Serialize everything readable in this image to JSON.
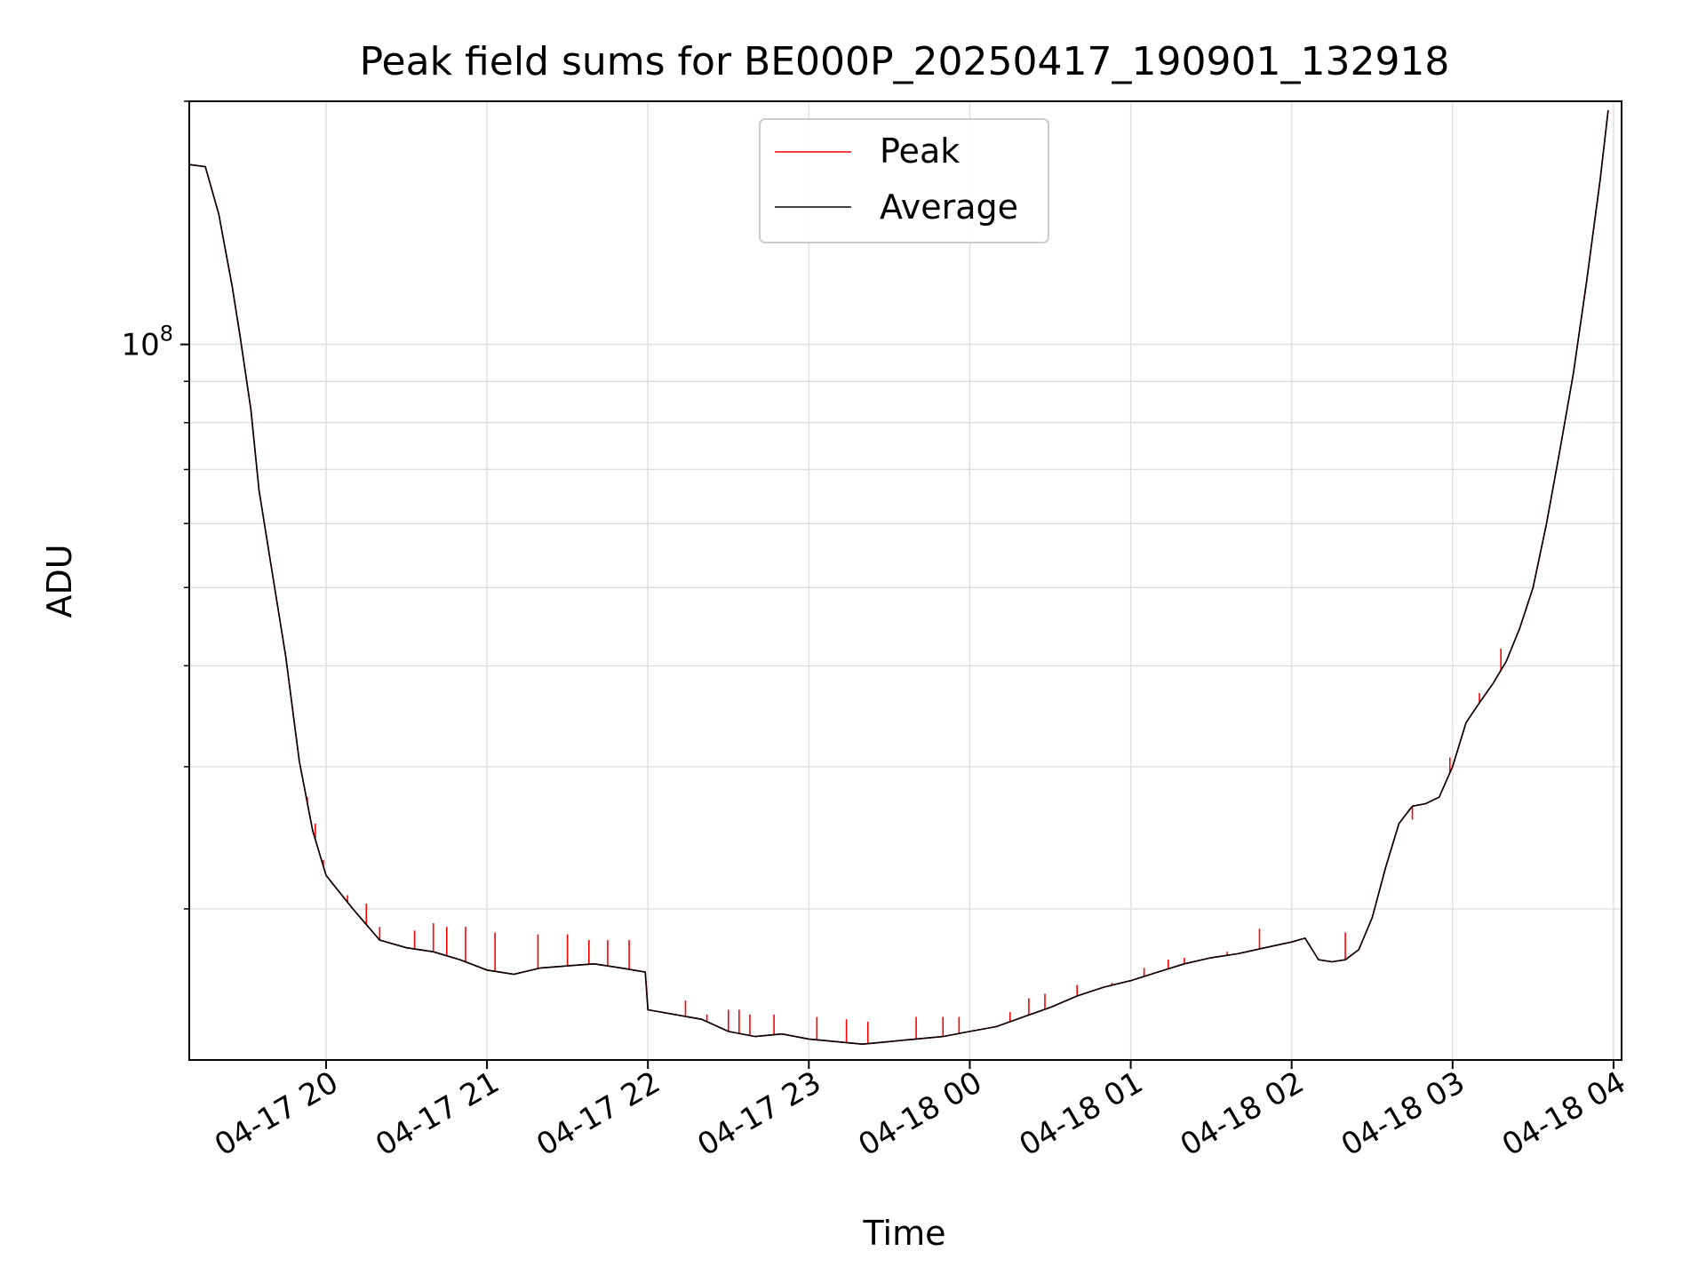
{
  "chart_data": {
    "type": "line",
    "title": "Peak field sums for BE000P_20250417_190901_132918",
    "xlabel": "Time",
    "ylabel": "ADU",
    "y_scale": "log",
    "ylim": [
      13000000,
      200000000
    ],
    "xlim": [
      "2025-04-17 19:09",
      "2025-04-18 04:03"
    ],
    "x_ticks": [
      "2025-04-17 20:00",
      "2025-04-17 21:00",
      "2025-04-17 22:00",
      "2025-04-17 23:00",
      "2025-04-18 00:00",
      "2025-04-18 01:00",
      "2025-04-18 02:00",
      "2025-04-18 03:00",
      "2025-04-18 04:00"
    ],
    "x_tick_labels": [
      "04-17 20",
      "04-17 21",
      "04-17 22",
      "04-17 23",
      "04-18 00",
      "04-18 01",
      "04-18 02",
      "04-18 03",
      "04-18 04"
    ],
    "y_tick_labels": [
      {
        "value": 100000000,
        "base": "10",
        "exp": "8"
      }
    ],
    "grid": true,
    "legend_position": "top-center",
    "series": [
      {
        "name": "Peak",
        "color": "#ff0000",
        "spikes": [
          [
            "2025-04-17 19:53",
            27500000
          ],
          [
            "2025-04-17 19:56",
            25500000
          ],
          [
            "2025-04-17 19:59",
            23000000
          ],
          [
            "2025-04-17 20:08",
            20800000
          ],
          [
            "2025-04-17 20:15",
            20300000
          ],
          [
            "2025-04-17 20:20",
            19000000
          ],
          [
            "2025-04-17 20:33",
            18800000
          ],
          [
            "2025-04-17 20:40",
            19200000
          ],
          [
            "2025-04-17 20:45",
            19000000
          ],
          [
            "2025-04-17 20:52",
            19000000
          ],
          [
            "2025-04-17 21:03",
            18700000
          ],
          [
            "2025-04-17 21:19",
            18600000
          ],
          [
            "2025-04-17 21:30",
            18600000
          ],
          [
            "2025-04-17 21:38",
            18300000
          ],
          [
            "2025-04-17 21:45",
            18300000
          ],
          [
            "2025-04-17 21:53",
            18300000
          ],
          [
            "2025-04-17 22:14",
            15400000
          ],
          [
            "2025-04-17 22:22",
            14800000
          ],
          [
            "2025-04-17 22:30",
            15000000
          ],
          [
            "2025-04-17 22:34",
            15000000
          ],
          [
            "2025-04-17 22:38",
            14800000
          ],
          [
            "2025-04-17 22:47",
            14800000
          ],
          [
            "2025-04-17 23:03",
            14700000
          ],
          [
            "2025-04-17 23:14",
            14600000
          ],
          [
            "2025-04-17 23:22",
            14500000
          ],
          [
            "2025-04-17 23:40",
            14700000
          ],
          [
            "2025-04-17 23:50",
            14700000
          ],
          [
            "2025-04-17 23:56",
            14700000
          ],
          [
            "2025-04-18 00:15",
            14900000
          ],
          [
            "2025-04-18 00:22",
            15500000
          ],
          [
            "2025-04-18 00:28",
            15700000
          ],
          [
            "2025-04-18 00:40",
            16100000
          ],
          [
            "2025-04-18 00:53",
            16200000
          ],
          [
            "2025-04-18 01:05",
            16900000
          ],
          [
            "2025-04-18 01:14",
            17300000
          ],
          [
            "2025-04-18 01:20",
            17400000
          ],
          [
            "2025-04-18 01:36",
            17700000
          ],
          [
            "2025-04-18 01:48",
            18900000
          ],
          [
            "2025-04-18 02:20",
            18700000
          ],
          [
            "2025-04-18 02:45",
            25800000
          ],
          [
            "2025-04-18 02:59",
            30800000
          ],
          [
            "2025-04-18 03:10",
            37000000
          ],
          [
            "2025-04-18 03:18",
            42000000
          ]
        ]
      },
      {
        "name": "Average",
        "color": "#000000",
        "x": [
          "2025-04-17 19:09",
          "2025-04-17 19:15",
          "2025-04-17 19:20",
          "2025-04-17 19:25",
          "2025-04-17 19:28",
          "2025-04-17 19:32",
          "2025-04-17 19:35",
          "2025-04-17 19:40",
          "2025-04-17 19:45",
          "2025-04-17 19:50",
          "2025-04-17 19:55",
          "2025-04-17 20:00",
          "2025-04-17 20:10",
          "2025-04-17 20:20",
          "2025-04-17 20:30",
          "2025-04-17 20:40",
          "2025-04-17 20:50",
          "2025-04-17 21:00",
          "2025-04-17 21:10",
          "2025-04-17 21:20",
          "2025-04-17 21:30",
          "2025-04-17 21:40",
          "2025-04-17 21:50",
          "2025-04-17 21:59",
          "2025-04-17 22:00",
          "2025-04-17 22:10",
          "2025-04-17 22:20",
          "2025-04-17 22:30",
          "2025-04-17 22:40",
          "2025-04-17 22:50",
          "2025-04-17 23:00",
          "2025-04-17 23:10",
          "2025-04-17 23:20",
          "2025-04-17 23:30",
          "2025-04-17 23:40",
          "2025-04-17 23:50",
          "2025-04-18 00:00",
          "2025-04-18 00:10",
          "2025-04-18 00:20",
          "2025-04-18 00:30",
          "2025-04-18 00:40",
          "2025-04-18 00:50",
          "2025-04-18 01:00",
          "2025-04-18 01:10",
          "2025-04-18 01:20",
          "2025-04-18 01:30",
          "2025-04-18 01:40",
          "2025-04-18 01:50",
          "2025-04-18 02:00",
          "2025-04-18 02:05",
          "2025-04-18 02:10",
          "2025-04-18 02:15",
          "2025-04-18 02:20",
          "2025-04-18 02:25",
          "2025-04-18 02:30",
          "2025-04-18 02:35",
          "2025-04-18 02:40",
          "2025-04-18 02:45",
          "2025-04-18 02:50",
          "2025-04-18 02:55",
          "2025-04-18 03:00",
          "2025-04-18 03:05",
          "2025-04-18 03:10",
          "2025-04-18 03:15",
          "2025-04-18 03:20",
          "2025-04-18 03:25",
          "2025-04-18 03:30",
          "2025-04-18 03:35",
          "2025-04-18 03:40",
          "2025-04-18 03:45",
          "2025-04-18 03:50",
          "2025-04-18 03:55",
          "2025-04-18 03:58"
        ],
        "y": [
          167000000,
          166000000,
          145000000,
          118000000,
          102000000,
          83000000,
          66000000,
          52000000,
          41000000,
          30500000,
          25000000,
          22000000,
          20000000,
          18300000,
          17900000,
          17700000,
          17300000,
          16800000,
          16600000,
          16900000,
          17000000,
          17100000,
          16900000,
          16700000,
          15000000,
          14800000,
          14600000,
          14100000,
          13900000,
          14000000,
          13800000,
          13700000,
          13600000,
          13700000,
          13800000,
          13900000,
          14100000,
          14300000,
          14700000,
          15100000,
          15600000,
          16000000,
          16300000,
          16700000,
          17100000,
          17400000,
          17600000,
          17900000,
          18200000,
          18400000,
          17300000,
          17200000,
          17300000,
          17800000,
          19500000,
          22500000,
          25500000,
          26800000,
          27000000,
          27500000,
          30000000,
          34000000,
          36000000,
          38000000,
          40500000,
          44500000,
          50000000,
          60000000,
          74000000,
          92000000,
          120000000,
          160000000,
          195000000
        ]
      }
    ]
  }
}
